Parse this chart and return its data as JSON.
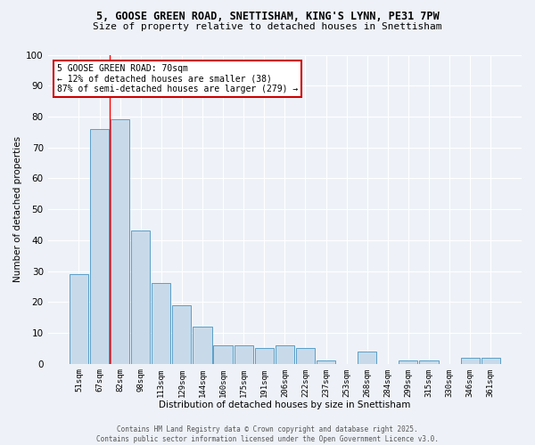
{
  "title_line1": "5, GOOSE GREEN ROAD, SNETTISHAM, KING'S LYNN, PE31 7PW",
  "title_line2": "Size of property relative to detached houses in Snettisham",
  "xlabel": "Distribution of detached houses by size in Snettisham",
  "ylabel": "Number of detached properties",
  "categories": [
    "51sqm",
    "67sqm",
    "82sqm",
    "98sqm",
    "113sqm",
    "129sqm",
    "144sqm",
    "160sqm",
    "175sqm",
    "191sqm",
    "206sqm",
    "222sqm",
    "237sqm",
    "253sqm",
    "268sqm",
    "284sqm",
    "299sqm",
    "315sqm",
    "330sqm",
    "346sqm",
    "361sqm"
  ],
  "values": [
    29,
    76,
    79,
    43,
    26,
    19,
    12,
    6,
    6,
    5,
    6,
    5,
    1,
    0,
    4,
    0,
    1,
    1,
    0,
    2,
    2
  ],
  "bar_color": "#c8daea",
  "bar_edge_color": "#5a9fc8",
  "red_line_x": 1.5,
  "annotation_text": "5 GOOSE GREEN ROAD: 70sqm\n← 12% of detached houses are smaller (38)\n87% of semi-detached houses are larger (279) →",
  "annotation_box_color": "#ffffff",
  "annotation_box_edge_color": "#cc0000",
  "footer_text": "Contains HM Land Registry data © Crown copyright and database right 2025.\nContains public sector information licensed under the Open Government Licence v3.0.",
  "background_color": "#eef2f8",
  "ylim": [
    0,
    100
  ],
  "yticks": [
    0,
    10,
    20,
    30,
    40,
    50,
    60,
    70,
    80,
    90,
    100
  ],
  "grid_color": "#ffffff"
}
